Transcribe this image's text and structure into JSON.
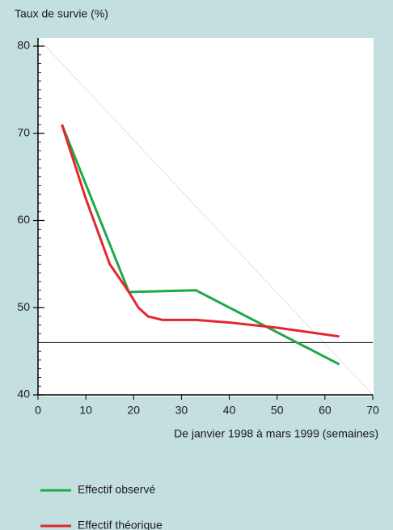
{
  "chart_data": {
    "type": "line",
    "y_axis_title": "Taux de survie (%)",
    "x_axis_title": "De janvier 1998 à mars 1999 (semaines)",
    "xlim": [
      0,
      70
    ],
    "xticks": [
      0,
      10,
      20,
      30,
      40,
      50,
      60,
      70
    ],
    "ylim": [
      40,
      80
    ],
    "yticks": [
      40,
      50,
      60,
      70,
      80
    ],
    "reference_line": 46,
    "series": [
      {
        "name": "Effectif observé",
        "color": "#1fa84a",
        "x": [
          5,
          19,
          33,
          63
        ],
        "values": [
          71,
          51.8,
          52,
          43.5
        ]
      },
      {
        "name": "Effectif théorique",
        "color": "#e4262c",
        "x": [
          5,
          10,
          15,
          19,
          21,
          23,
          26,
          33,
          40,
          50,
          63
        ],
        "values": [
          71,
          62.5,
          55,
          51.8,
          50,
          49,
          48.6,
          48.6,
          48.3,
          47.7,
          46.7
        ]
      }
    ]
  }
}
